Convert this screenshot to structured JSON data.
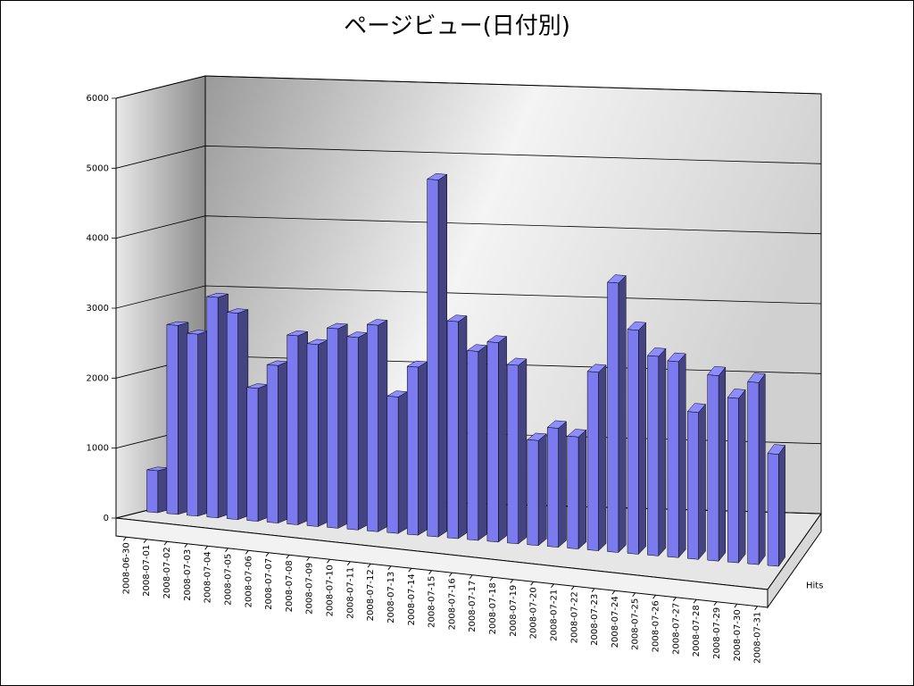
{
  "chart_data": {
    "type": "bar3d",
    "title": "ページビュー(日付別)",
    "categories": [
      "2008-06-30",
      "2008-07-01",
      "2008-07-02",
      "2008-07-03",
      "2008-07-04",
      "2008-07-05",
      "2008-07-06",
      "2008-07-07",
      "2008-07-08",
      "2008-07-09",
      "2008-07-10",
      "2008-07-11",
      "2008-07-12",
      "2008-07-13",
      "2008-07-14",
      "2008-07-15",
      "2008-07-16",
      "2008-07-17",
      "2008-07-18",
      "2008-07-19",
      "2008-07-20",
      "2008-07-21",
      "2008-07-22",
      "2008-07-23",
      "2008-07-24",
      "2008-07-25",
      "2008-07-26",
      "2008-07-27",
      "2008-07-28",
      "2008-07-29",
      "2008-07-30",
      "2008-07-31"
    ],
    "series": [
      {
        "name": "Hits",
        "color": "#7b7bef",
        "values": [
          600,
          2700,
          2600,
          3150,
          2950,
          1900,
          2250,
          2700,
          2600,
          2850,
          2750,
          2950,
          1950,
          2400,
          5100,
          3100,
          2700,
          2850,
          2550,
          1500,
          1700,
          1600,
          2550,
          3850,
          3200,
          2850,
          2800,
          2100,
          2650,
          2350,
          2600,
          1600
        ]
      }
    ],
    "ylim": [
      0,
      6000
    ],
    "yticks": [
      0,
      1000,
      2000,
      3000,
      4000,
      5000,
      6000
    ],
    "grid": true
  }
}
